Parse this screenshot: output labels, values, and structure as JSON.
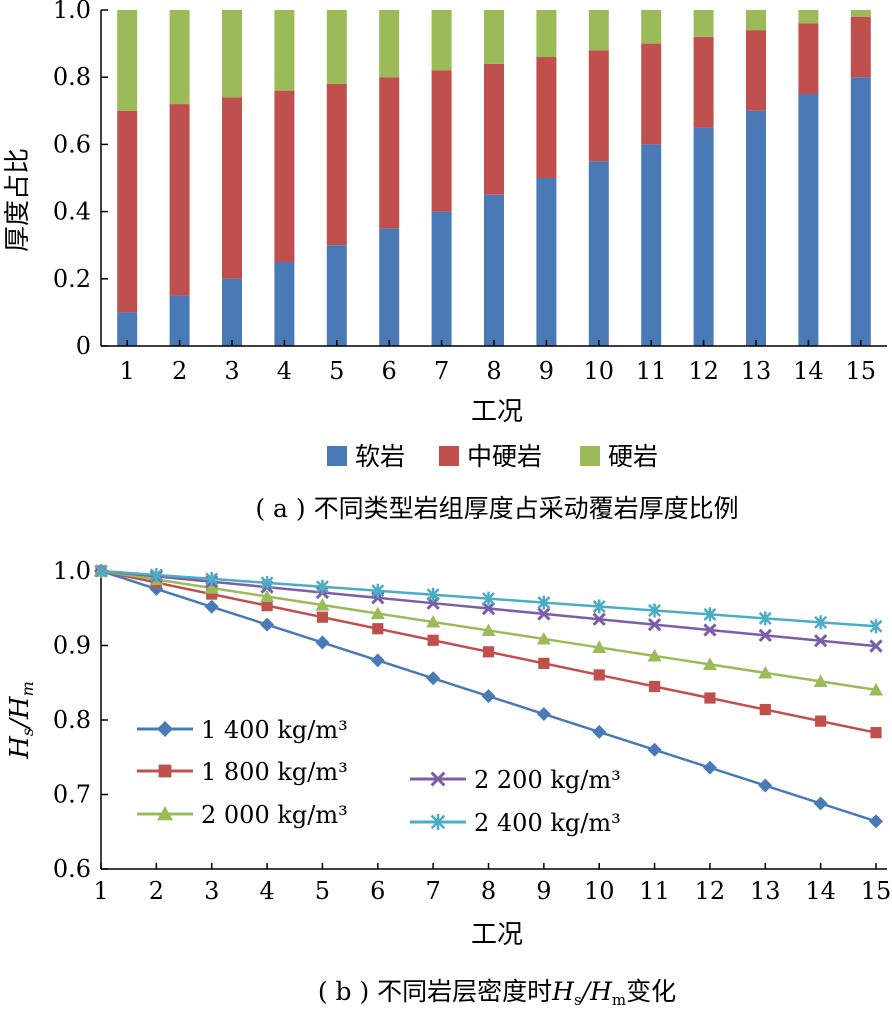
{
  "charts": [
    {
      "caption": "( a ) 不同类型岩组厚度占采动覆岩厚度比例",
      "chart_data": {
        "type": "bar",
        "stacked": true,
        "categories": [
          "1",
          "2",
          "3",
          "4",
          "5",
          "6",
          "7",
          "8",
          "9",
          "10",
          "11",
          "12",
          "13",
          "14",
          "15"
        ],
        "series": [
          {
            "name": "软岩",
            "color": "#4a7ab5",
            "values": [
              0.1,
              0.15,
              0.2,
              0.25,
              0.3,
              0.35,
              0.4,
              0.45,
              0.5,
              0.55,
              0.6,
              0.65,
              0.7,
              0.75,
              0.8
            ]
          },
          {
            "name": "中硬岩",
            "color": "#c0504d",
            "values": [
              0.6,
              0.57,
              0.54,
              0.51,
              0.48,
              0.45,
              0.42,
              0.39,
              0.36,
              0.33,
              0.3,
              0.27,
              0.24,
              0.21,
              0.18
            ]
          },
          {
            "name": "硬岩",
            "color": "#9bbb59",
            "values": [
              0.3,
              0.28,
              0.26,
              0.24,
              0.22,
              0.2,
              0.18,
              0.16,
              0.14,
              0.12,
              0.1,
              0.08,
              0.06,
              0.04,
              0.02
            ]
          }
        ],
        "xlabel": "工况",
        "ylabel": "厚度占比",
        "ylim": [
          0,
          1.0
        ],
        "yticks": [
          "0",
          "0.2",
          "0.4",
          "0.6",
          "0.8",
          "1.0"
        ],
        "legend_position": "bottom"
      }
    },
    {
      "caption_prefix": "( b ) 不同岩层密度时",
      "caption_suffix": "变化",
      "chart_data": {
        "type": "line",
        "x": [
          1,
          2,
          3,
          4,
          5,
          6,
          7,
          8,
          9,
          10,
          11,
          12,
          13,
          14,
          15
        ],
        "series": [
          {
            "name": "1 400 kg/m³",
            "color": "#4a7ab5",
            "marker": "diamond",
            "values": [
              1.0,
              0.976,
              0.952,
              0.928,
              0.904,
              0.88,
              0.856,
              0.832,
              0.808,
              0.784,
              0.76,
              0.736,
              0.712,
              0.688,
              0.664
            ]
          },
          {
            "name": "1 800 kg/m³",
            "color": "#c0504d",
            "marker": "square",
            "values": [
              1.0,
              0.9845,
              0.969,
              0.9535,
              0.938,
              0.9225,
              0.907,
              0.8915,
              0.876,
              0.8605,
              0.845,
              0.8295,
              0.814,
              0.7985,
              0.783
            ]
          },
          {
            "name": "2 000 kg/m³",
            "color": "#9bbb59",
            "marker": "triangle",
            "values": [
              1.0,
              0.9886,
              0.9772,
              0.9658,
              0.9544,
              0.943,
              0.9316,
              0.9202,
              0.9088,
              0.8974,
              0.886,
              0.8746,
              0.8632,
              0.8518,
              0.8404
            ]
          },
          {
            "name": "2 200 kg/m³",
            "color": "#7b5ea7",
            "marker": "x",
            "values": [
              1.0,
              0.9928,
              0.9856,
              0.9784,
              0.9712,
              0.964,
              0.9568,
              0.9496,
              0.9424,
              0.9352,
              0.928,
              0.9208,
              0.9136,
              0.9064,
              0.8992
            ]
          },
          {
            "name": "2 400 kg/m³",
            "color": "#4bacc6",
            "marker": "star",
            "values": [
              1.0,
              0.9947,
              0.9894,
              0.9841,
              0.9788,
              0.9735,
              0.9682,
              0.9629,
              0.9576,
              0.9523,
              0.947,
              0.9417,
              0.9364,
              0.9311,
              0.9258
            ]
          }
        ],
        "xlabel": "工况",
        "ylabel": "Hs/Hm",
        "ylim": [
          0.6,
          1.0
        ],
        "yticks": [
          "0.6",
          "0.7",
          "0.8",
          "0.9",
          "1.0"
        ],
        "xticks": [
          "1",
          "2",
          "3",
          "4",
          "5",
          "6",
          "7",
          "8",
          "9",
          "10",
          "11",
          "12",
          "13",
          "14",
          "15"
        ],
        "legend_position": "lower-left"
      }
    }
  ]
}
